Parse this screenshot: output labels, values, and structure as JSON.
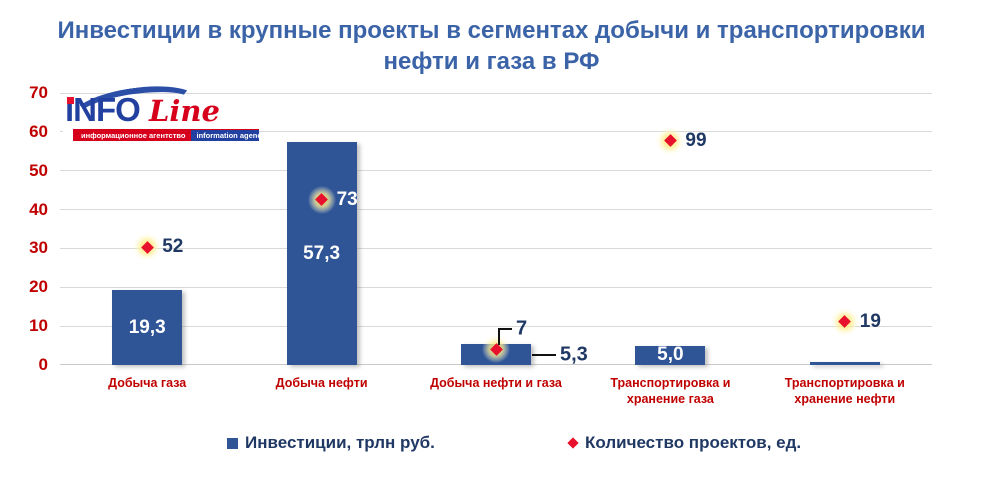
{
  "logo": {
    "brand_top": "iNFO",
    "brand_script": "Line",
    "tagline_ru": "информационное агентство",
    "tagline_en": "information agency"
  },
  "chart_data": {
    "type": "bar",
    "title": "Инвестиции в крупные проекты в сегментах добычи и транспортировки нефти и газа в РФ",
    "title_lines": [
      "Инвестиции в крупные проекты в сегментах добычи и транспортировки",
      "нефти и газа в РФ"
    ],
    "categories": [
      "Добыча газа",
      "Добыча нефти",
      "Добыча нефти и газа",
      "Транспортировка и хранение газа",
      "Транспортировка и хранение нефти"
    ],
    "series": [
      {
        "name": "Инвестиции, трлн руб.",
        "type": "bar",
        "color": "#2F5597",
        "axis": "primary",
        "values": [
          19.3,
          57.3,
          5.3,
          5.0,
          0.7
        ],
        "value_labels": [
          "19,3",
          "57,3",
          "5,3",
          "5,0",
          ""
        ],
        "label_placement": [
          "inside",
          "inside",
          "callout-right",
          "inside",
          "none"
        ]
      },
      {
        "name": "Количество проектов, ед.",
        "type": "scatter",
        "marker": "diamond",
        "color": "#E8112D",
        "axis": "secondary",
        "values": [
          52,
          73,
          7,
          99,
          19
        ],
        "value_labels": [
          "52",
          "73",
          "7",
          "99",
          "19"
        ],
        "label_placement": [
          "right",
          "right-on-bar",
          "callout-up",
          "right",
          "right"
        ]
      }
    ],
    "axes": {
      "primary_y": {
        "min": 0,
        "max": 70,
        "ticks": [
          0,
          10,
          20,
          30,
          40,
          50,
          60,
          70
        ],
        "tick_color": "#C00000",
        "visible": true
      },
      "secondary_y": {
        "min": 0,
        "max": 120,
        "visible": false
      }
    },
    "grid": {
      "horizontal": true,
      "color": "#D9D9D9"
    },
    "legend_position": "bottom"
  },
  "colors": {
    "bar_fill": "#2F5597",
    "marker_fill": "#E8112D",
    "axis_text": "#C00000",
    "category_text": "#C00000",
    "value_label_navy": "#1F3864",
    "value_label_white": "#FFFFFF",
    "title_text": "#3B63A8",
    "gridline": "#D9D9D9"
  }
}
